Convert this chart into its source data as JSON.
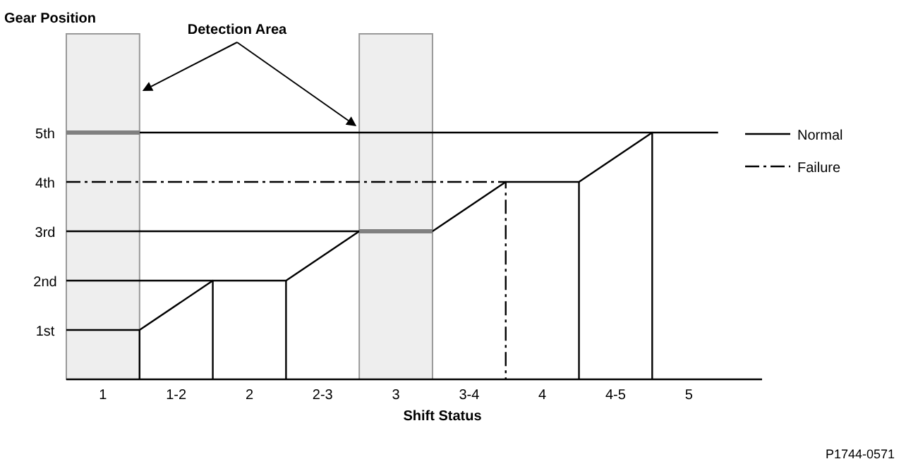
{
  "chart_data": {
    "type": "line",
    "xlabel": "Shift Status",
    "xlim": [
      0.75,
      5.5
    ],
    "ylim": [
      0,
      5
    ],
    "xticks": [
      1,
      {
        "value": 1.5,
        "label": "1-2"
      },
      2,
      {
        "value": 2.5,
        "label": "2-3"
      },
      3,
      {
        "value": 3.5,
        "label": "3-4"
      },
      4,
      {
        "value": 4.5,
        "label": "4-5"
      },
      5
    ],
    "yticks": [
      {
        "value": 1,
        "label": "1st"
      },
      {
        "value": 2,
        "label": "2nd"
      },
      {
        "value": 3,
        "label": "3rd"
      },
      {
        "value": 4,
        "label": "4th"
      },
      {
        "value": 5,
        "label": "5th"
      }
    ],
    "bands": [
      {
        "axis": "x",
        "from": 0.75,
        "to": 1.25,
        "color": "#eeeeee"
      },
      {
        "axis": "x",
        "from": 2.75,
        "to": 3.25,
        "color": "#eeeeee"
      }
    ],
    "series": [
      {
        "name": "Normal",
        "color": "#000000",
        "x": [
          0.75,
          1.25,
          1.75,
          2.25,
          2.75,
          3.25,
          3.75,
          4.25,
          4.75,
          5.2
        ],
        "values": [
          1,
          1,
          2,
          2,
          3,
          3,
          4,
          4,
          5,
          5
        ]
      },
      {
        "name": "Failure",
        "color": "#000000",
        "line_style": "dashed",
        "x": [
          0.75,
          3.75,
          3.75
        ],
        "values": [
          4,
          4,
          0
        ]
      },
      {
        "color": "#000000",
        "x": [
          1.25,
          1.25
        ],
        "values": [
          0,
          1
        ]
      },
      {
        "color": "#000000",
        "x": [
          1.75,
          1.75
        ],
        "values": [
          0,
          2
        ]
      },
      {
        "color": "#000000",
        "x": [
          2.25,
          2.25
        ],
        "values": [
          0,
          2
        ]
      },
      {
        "color": "#000000",
        "x": [
          4.25,
          4.25
        ],
        "values": [
          0,
          4
        ]
      },
      {
        "color": "#000000",
        "x": [
          4.75,
          4.75
        ],
        "values": [
          0,
          5
        ]
      },
      {
        "color": "#000000",
        "x": [
          0.75,
          1.75
        ],
        "values": [
          2,
          2
        ]
      },
      {
        "color": "#000000",
        "x": [
          0.75,
          2.75
        ],
        "values": [
          3,
          3
        ]
      },
      {
        "color": "#000000",
        "x": [
          1.25,
          4.75
        ],
        "values": [
          5,
          5
        ]
      },
      {
        "color": "#808080",
        "x": [
          0.75,
          1.25
        ],
        "values": [
          5,
          5
        ]
      },
      {
        "color": "#808080",
        "x": [
          2.75,
          3.25
        ],
        "values": [
          3,
          3
        ]
      }
    ],
    "legend": "right",
    "grid": false,
    "annotations": [
      "Gear Position",
      "Detection Area",
      "P1744-0571"
    ]
  }
}
